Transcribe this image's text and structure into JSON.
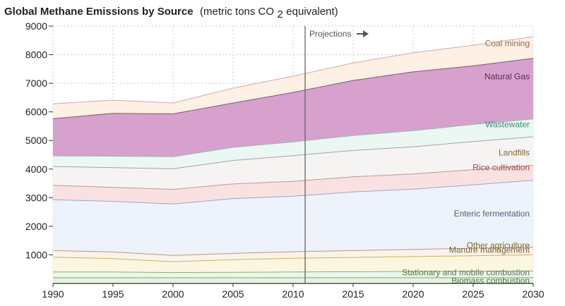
{
  "chart_data": {
    "type": "area",
    "title": "Global Methane Emissions by Source",
    "subtitle_prefix": "(metric tons CO",
    "subtitle_sub": "2",
    "subtitle_suffix": " equivalent)",
    "x": [
      1990,
      1995,
      2000,
      2005,
      2010,
      2015,
      2020,
      2025,
      2030
    ],
    "xlim": [
      1990,
      2030
    ],
    "ylim": [
      0,
      9000
    ],
    "x_ticks": [
      "1990",
      "1995",
      "2000",
      "2005",
      "2010",
      "2015",
      "2020",
      "2025",
      "2030"
    ],
    "y_ticks": [
      "1000",
      "2000",
      "3000",
      "4000",
      "5000",
      "6000",
      "7000",
      "8000",
      "9000"
    ],
    "grid": true,
    "projection_start": 2011,
    "projection_label": "Projections",
    "series": [
      {
        "name": "Biomass combustion",
        "values": [
          200,
          200,
          200,
          200,
          200,
          200,
          200,
          200,
          200
        ],
        "fill": "#e6f2e2",
        "stroke": "#7fa874"
      },
      {
        "name": "Stationary and mobile combustion",
        "values": [
          200,
          200,
          180,
          190,
          200,
          210,
          220,
          230,
          240
        ],
        "fill": "#eef6ea",
        "stroke": "#86b07a"
      },
      {
        "name": "Other agriculture",
        "values": [
          520,
          470,
          380,
          440,
          480,
          500,
          520,
          540,
          560
        ],
        "fill": "#fbf6e0",
        "stroke": "#c9b16a"
      },
      {
        "name": "Manure management",
        "values": [
          230,
          230,
          220,
          220,
          230,
          240,
          250,
          260,
          270
        ],
        "fill": "#fbf3e8",
        "stroke": "#b79b78"
      },
      {
        "name": "Enteric fermentation",
        "values": [
          1780,
          1770,
          1800,
          1920,
          1940,
          2050,
          2110,
          2220,
          2340
        ],
        "fill": "#edf2fb",
        "stroke": "#95a8c6"
      },
      {
        "name": "Rice cultivation",
        "values": [
          500,
          490,
          510,
          510,
          520,
          530,
          530,
          530,
          520
        ],
        "fill": "#fae1e1",
        "stroke": "#c99393"
      },
      {
        "name": "Landfills",
        "values": [
          660,
          690,
          720,
          820,
          900,
          920,
          950,
          980,
          1000
        ],
        "fill": "#f6f3f3",
        "stroke": "#a9a29c"
      },
      {
        "name": "Wastewater",
        "values": [
          370,
          400,
          420,
          460,
          480,
          520,
          560,
          600,
          620
        ],
        "fill": "#ebf7f3",
        "stroke": "#8fbfad"
      },
      {
        "name": "Natural Gas",
        "values": [
          1300,
          1500,
          1500,
          1550,
          1730,
          1930,
          2060,
          2050,
          2120
        ],
        "fill": "#d6a1cd",
        "stroke": "#8a4f80"
      },
      {
        "name": "Coal mining",
        "values": [
          520,
          460,
          380,
          520,
          570,
          610,
          670,
          720,
          760
        ],
        "fill": "#fdf0e4",
        "stroke": "#d7a6a8"
      }
    ]
  }
}
